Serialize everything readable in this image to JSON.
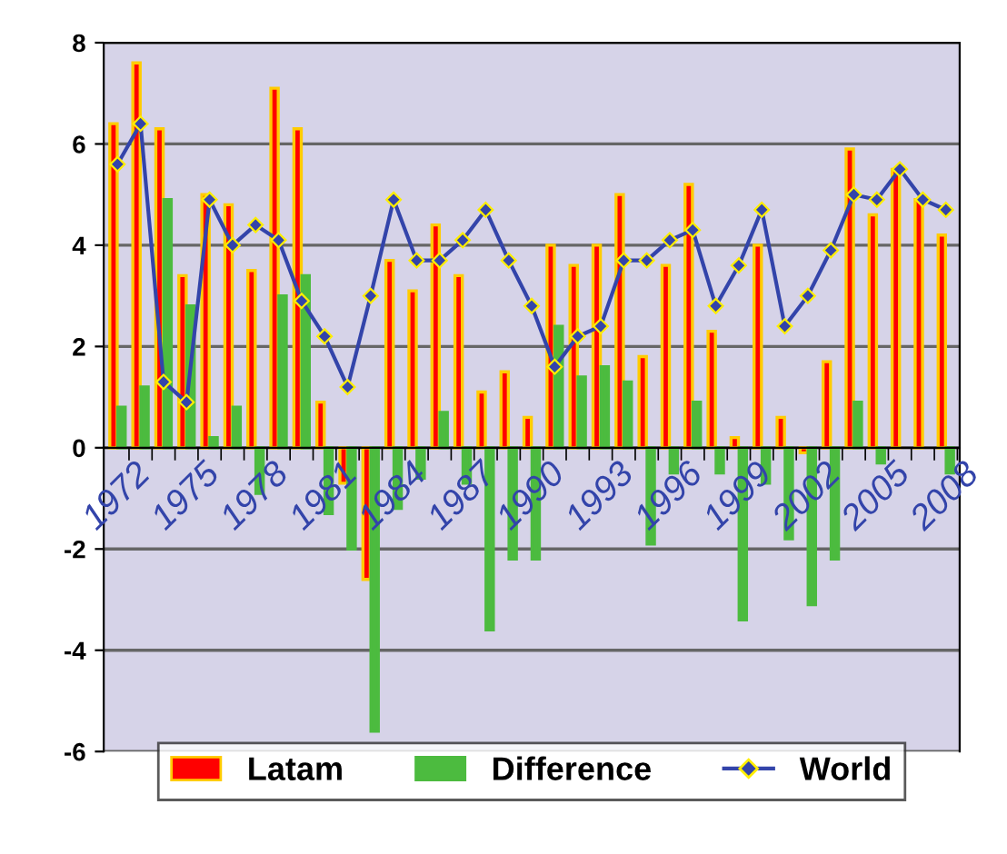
{
  "chart_data": {
    "type": "bar",
    "categories": [
      "1972",
      null,
      null,
      "1975",
      null,
      null,
      "1978",
      null,
      null,
      "1981",
      null,
      null,
      "1984",
      null,
      null,
      "1987",
      null,
      null,
      "1990",
      null,
      null,
      "1993",
      null,
      null,
      "1996",
      null,
      null,
      "1999",
      null,
      null,
      "2002",
      null,
      null,
      "2005",
      null,
      null,
      "2008"
    ],
    "series": [
      {
        "name": "Latam",
        "color": "#ff0000",
        "values": [
          6.4,
          7.6,
          6.3,
          3.4,
          5.0,
          4.8,
          3.5,
          7.1,
          6.3,
          0.9,
          -0.7,
          -2.6,
          3.7,
          3.1,
          4.4,
          3.4,
          1.1,
          1.5,
          0.6,
          4.0,
          3.6,
          4.0,
          5.0,
          1.8,
          3.6,
          5.2,
          2.3,
          0.2,
          4.0,
          0.6,
          -0.1,
          1.7,
          5.9,
          4.6,
          5.5,
          4.9,
          4.2
        ]
      },
      {
        "name": "Difference",
        "color": "#4cbb3f",
        "values": [
          0.8,
          1.2,
          4.9,
          2.8,
          0.2,
          0.8,
          -0.9,
          3.0,
          3.4,
          -1.3,
          -2.0,
          -5.6,
          -1.2,
          -0.6,
          0.7,
          -0.7,
          -3.6,
          -2.2,
          -2.2,
          2.4,
          1.4,
          1.6,
          1.3,
          -1.9,
          -0.5,
          0.9,
          -0.5,
          -3.4,
          -0.7,
          -1.8,
          -3.1,
          -2.2,
          0.9,
          -0.3,
          null,
          null,
          -0.5
        ]
      },
      {
        "name": "World",
        "type": "line",
        "color": "#3344aa",
        "marker": "diamond",
        "values": [
          5.6,
          6.4,
          1.3,
          0.9,
          4.9,
          4.0,
          4.4,
          4.1,
          2.9,
          2.2,
          1.2,
          3.0,
          4.9,
          3.7,
          3.7,
          4.1,
          4.7,
          3.7,
          2.8,
          1.6,
          2.2,
          2.4,
          3.7,
          3.7,
          4.1,
          4.3,
          2.8,
          3.6,
          4.7,
          2.4,
          3.0,
          3.9,
          5.0,
          4.9,
          5.5,
          4.9,
          4.7
        ]
      }
    ],
    "ylim": [
      -6,
      8
    ],
    "yticks": [
      -6,
      -4,
      -2,
      0,
      2,
      4,
      6,
      8
    ],
    "grid": "y",
    "legend": "bottom"
  }
}
